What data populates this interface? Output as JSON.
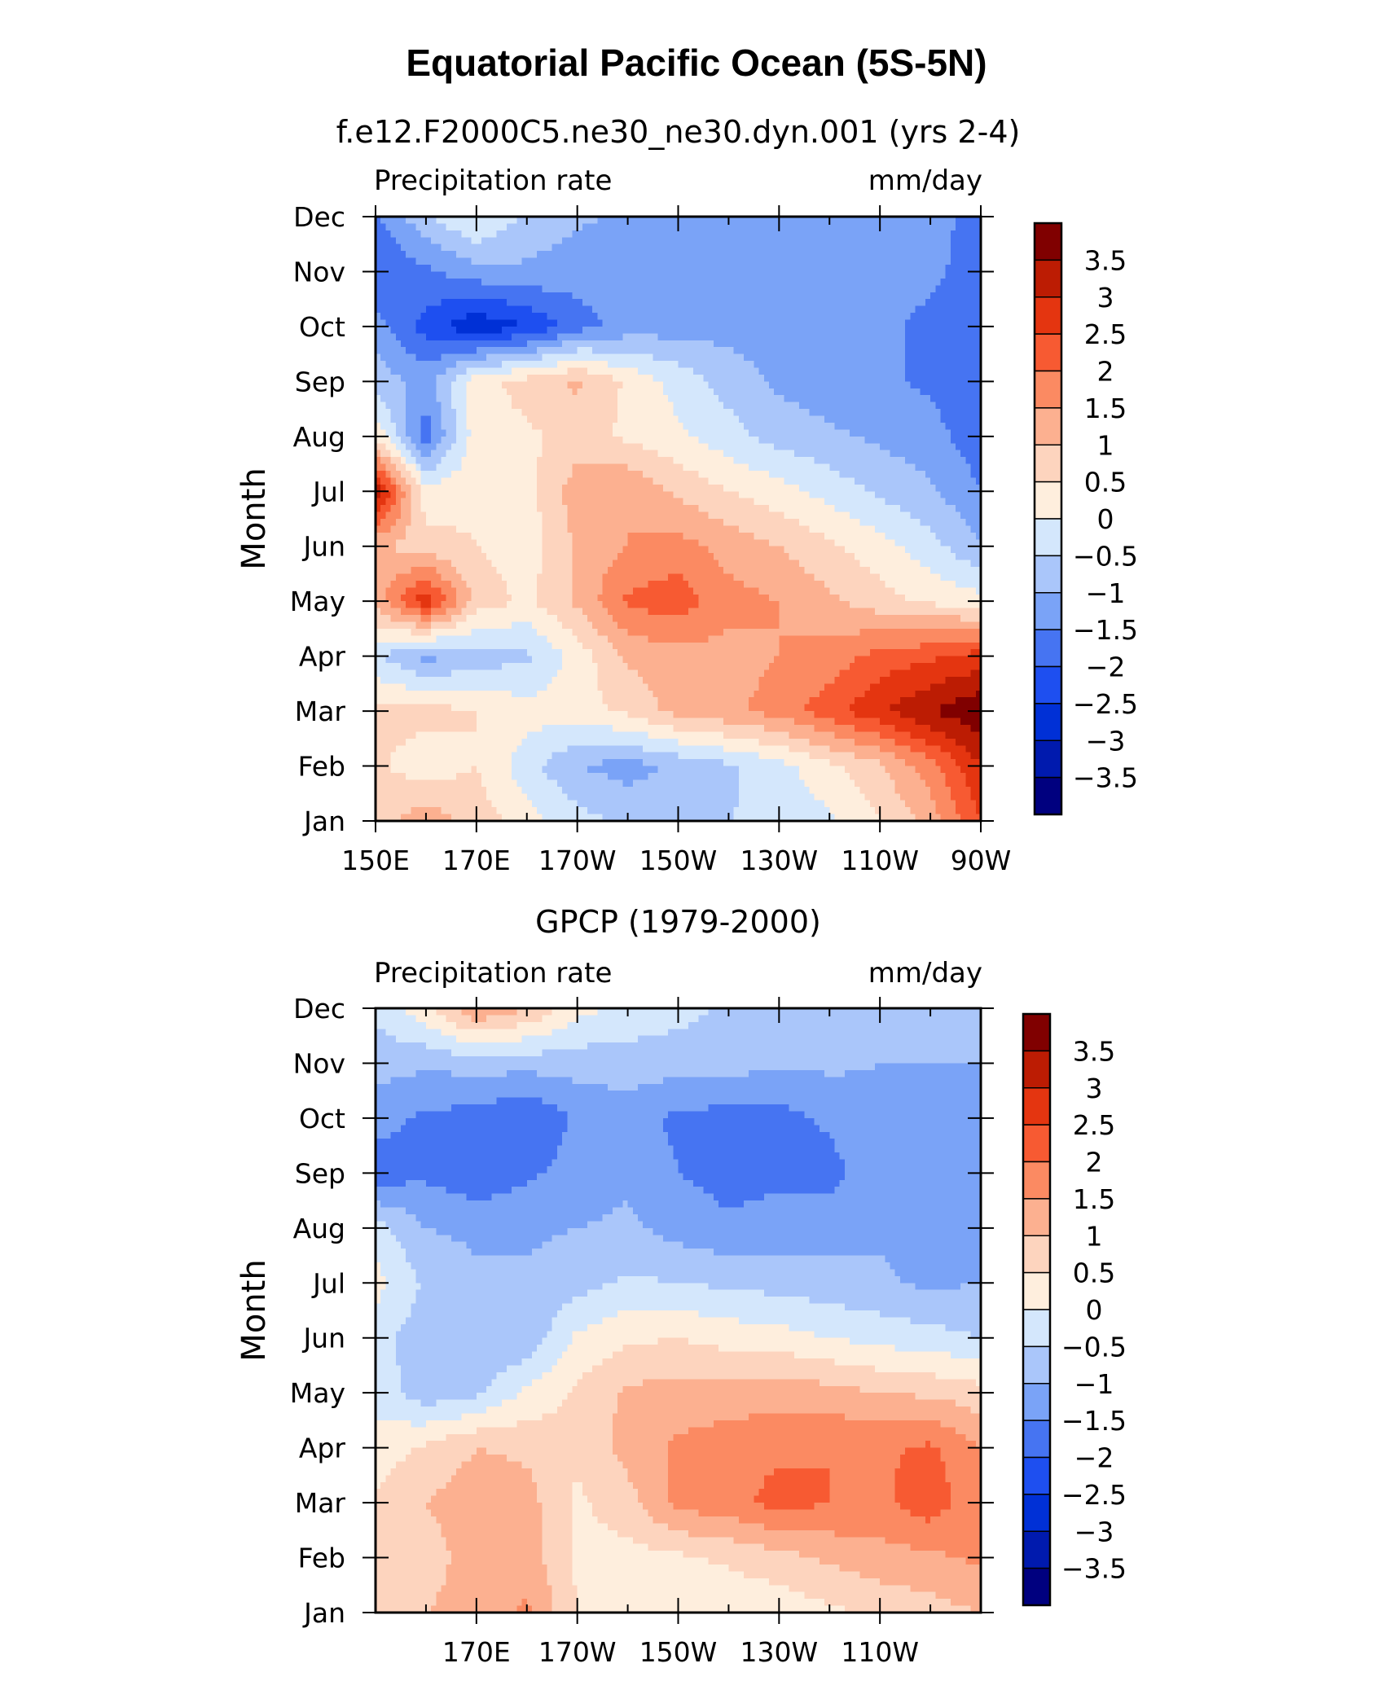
{
  "figure": {
    "title": "Equatorial Pacific Ocean (5S-5N)"
  },
  "colors": {
    "levels": [
      "#00007f",
      "#001aae",
      "#0030d6",
      "#1e4ff0",
      "#4674f2",
      "#7aa3f7",
      "#aac6fa",
      "#d4e7fc",
      "#feeedd",
      "#fdd4be",
      "#fcb090",
      "#fb8a62",
      "#f75a32",
      "#e43510",
      "#bc1c03",
      "#800000"
    ]
  },
  "chart_data": [
    {
      "type": "heatmap",
      "subtitle": "f.e12.F2000C5.ne30_ne30.dyn.001 (yrs 2-4)",
      "left_label": "Precipitation rate",
      "right_label": "mm/day",
      "ylabel": "Month",
      "xlabel": "",
      "x_tick_labels": [
        "150E",
        "170E",
        "170W",
        "150W",
        "130W",
        "110W",
        "90W"
      ],
      "y_tick_labels": [
        "Jan",
        "Feb",
        "Mar",
        "Apr",
        "May",
        "Jun",
        "Jul",
        "Aug",
        "Sep",
        "Oct",
        "Nov",
        "Dec"
      ],
      "xlim_deg_east": [
        150,
        270
      ],
      "colorbar_labels": [
        "3.5",
        "3",
        "2.5",
        "2",
        "1.5",
        "1",
        "0.5",
        "0",
        "-0.5",
        "-1",
        "-1.5",
        "-2",
        "-2.5",
        "-3",
        "-3.5"
      ],
      "longitudes": [
        150,
        160,
        170,
        180,
        190,
        200,
        210,
        220,
        230,
        240,
        250,
        260,
        270
      ],
      "months": [
        "Jan",
        "Feb",
        "Mar",
        "Apr",
        "May",
        "Jun",
        "Jul",
        "Aug",
        "Sep",
        "Oct",
        "Nov",
        "Dec"
      ],
      "values": [
        [
          0.8,
          1.3,
          0.8,
          0.2,
          -0.3,
          -0.6,
          -0.6,
          -0.5,
          -0.4,
          -0.1,
          0.5,
          1.2,
          2.5
        ],
        [
          0.6,
          0.2,
          0.5,
          -0.3,
          -1.0,
          -1.2,
          -0.9,
          -0.6,
          -0.2,
          0.4,
          0.9,
          1.8,
          3.0
        ],
        [
          0.6,
          0.7,
          0.5,
          0.2,
          0.3,
          0.6,
          1.2,
          1.4,
          1.7,
          2.3,
          2.9,
          3.5,
          3.9
        ],
        [
          -0.4,
          -1.2,
          -0.8,
          -0.6,
          0.2,
          1.1,
          1.3,
          1.3,
          1.5,
          1.7,
          2.2,
          2.4,
          2.7
        ],
        [
          1.2,
          2.9,
          0.8,
          0.4,
          1.1,
          2.1,
          2.3,
          1.7,
          1.5,
          1.1,
          0.7,
          0.4,
          0.2
        ],
        [
          1.1,
          0.7,
          0.5,
          0.2,
          1.1,
          1.5,
          1.7,
          1.3,
          1.0,
          0.6,
          0.2,
          -0.3,
          -1.0
        ],
        [
          3.4,
          0.2,
          0.4,
          0.3,
          1.3,
          1.5,
          0.9,
          0.5,
          0.2,
          -0.2,
          -0.6,
          -0.9,
          -1.5
        ],
        [
          0.4,
          -1.8,
          0.3,
          0.4,
          0.7,
          0.4,
          0.1,
          -0.3,
          -0.7,
          -0.9,
          -1.1,
          -1.3,
          -1.8
        ],
        [
          -0.7,
          -1.2,
          0.3,
          0.7,
          1.1,
          0.4,
          -0.2,
          -0.7,
          -1.1,
          -1.3,
          -1.4,
          -1.6,
          -1.9
        ],
        [
          -1.3,
          -2.2,
          -2.9,
          -2.5,
          -1.7,
          -1.3,
          -1.2,
          -1.2,
          -1.3,
          -1.4,
          -1.4,
          -1.6,
          -2.0
        ],
        [
          -2.0,
          -1.6,
          -1.2,
          -1.1,
          -1.3,
          -1.4,
          -1.4,
          -1.4,
          -1.4,
          -1.4,
          -1.4,
          -1.4,
          -1.7
        ],
        [
          -1.6,
          -0.6,
          0.1,
          -0.6,
          -0.9,
          -1.1,
          -1.1,
          -1.1,
          -1.2,
          -1.2,
          -1.3,
          -1.4,
          -1.6
        ]
      ]
    },
    {
      "type": "heatmap",
      "subtitle": "GPCP (1979-2000)",
      "left_label": "Precipitation rate",
      "right_label": "mm/day",
      "ylabel": "Month",
      "xlabel": "",
      "x_tick_labels": [
        "170E",
        "170W",
        "150W",
        "130W",
        "110W"
      ],
      "y_tick_labels": [
        "Jan",
        "Feb",
        "Mar",
        "Apr",
        "May",
        "Jun",
        "Jul",
        "Aug",
        "Sep",
        "Oct",
        "Nov",
        "Dec"
      ],
      "xlim_deg_east": [
        150,
        270
      ],
      "colorbar_labels": [
        "3.5",
        "3",
        "2.5",
        "2",
        "1.5",
        "1",
        "0.5",
        "0",
        "-0.5",
        "-1",
        "-1.5",
        "-2",
        "-2.5",
        "-3",
        "-3.5"
      ],
      "longitudes": [
        150,
        160,
        170,
        180,
        190,
        200,
        210,
        220,
        230,
        240,
        250,
        260,
        270
      ],
      "months": [
        "Jan",
        "Feb",
        "Mar",
        "Apr",
        "May",
        "Jun",
        "Jul",
        "Aug",
        "Sep",
        "Oct",
        "Nov",
        "Dec"
      ],
      "values": [
        [
          0.6,
          1.0,
          1.2,
          1.6,
          0.5,
          0.2,
          0.1,
          0.1,
          0.2,
          0.4,
          0.6,
          0.8,
          1.0
        ],
        [
          0.5,
          0.8,
          1.2,
          1.3,
          0.4,
          0.3,
          0.4,
          0.6,
          0.8,
          1.1,
          1.3,
          1.4,
          1.6
        ],
        [
          0.6,
          1.0,
          1.3,
          1.2,
          0.4,
          0.8,
          1.7,
          1.8,
          2.2,
          2.0,
          1.9,
          2.3,
          1.6
        ],
        [
          0.2,
          0.6,
          1.0,
          0.9,
          0.6,
          1.2,
          1.6,
          1.8,
          1.9,
          2.0,
          1.9,
          2.1,
          1.5
        ],
        [
          -0.2,
          -0.8,
          -0.6,
          0.1,
          0.6,
          1.1,
          1.2,
          1.2,
          1.3,
          1.2,
          1.0,
          0.9,
          0.7
        ],
        [
          -0.3,
          -0.8,
          -1.0,
          -0.9,
          0.1,
          0.4,
          0.5,
          0.3,
          0.2,
          0.0,
          -0.2,
          -0.3,
          -0.5
        ],
        [
          0.2,
          -0.6,
          -0.9,
          -0.9,
          -0.7,
          -0.4,
          -0.5,
          -0.6,
          -0.7,
          -0.8,
          -0.9,
          -1.1,
          -1.0
        ],
        [
          -0.3,
          -1.0,
          -1.1,
          -1.1,
          -1.0,
          -0.9,
          -1.2,
          -1.4,
          -1.3,
          -1.2,
          -1.1,
          -1.3,
          -1.2
        ],
        [
          -1.8,
          -1.6,
          -1.9,
          -1.6,
          -1.3,
          -1.1,
          -1.5,
          -1.7,
          -1.6,
          -1.7,
          -1.1,
          -1.3,
          -1.4
        ],
        [
          -1.3,
          -1.6,
          -1.7,
          -2.0,
          -1.4,
          -1.3,
          -1.6,
          -1.7,
          -1.7,
          -1.4,
          -1.1,
          -1.2,
          -1.3
        ],
        [
          -0.8,
          -0.9,
          -0.8,
          -0.8,
          -0.8,
          -0.7,
          -0.8,
          -0.8,
          -0.9,
          -0.9,
          -1.0,
          -1.0,
          -1.0
        ],
        [
          -0.4,
          0.4,
          1.5,
          1.0,
          0.2,
          -0.2,
          -0.3,
          -0.6,
          -0.7,
          -0.7,
          -0.7,
          -0.8,
          -0.8
        ]
      ]
    }
  ]
}
